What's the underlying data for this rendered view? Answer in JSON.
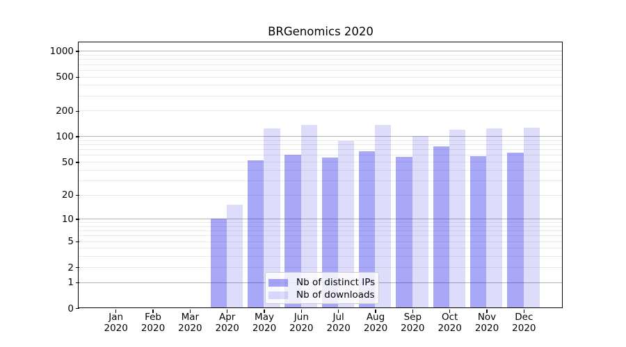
{
  "chart_data": {
    "type": "bar",
    "title": "BRGenomics 2020",
    "year": "2020",
    "categories": [
      "Jan",
      "Feb",
      "Mar",
      "Apr",
      "May",
      "Jun",
      "Jul",
      "Aug",
      "Sep",
      "Oct",
      "Nov",
      "Dec"
    ],
    "series": [
      {
        "name": "Nb of distinct IPs",
        "color": "rgba(13,13,230,0.36)",
        "values": [
          0,
          0,
          0,
          10,
          52,
          61,
          56,
          67,
          57,
          76,
          58,
          64
        ]
      },
      {
        "name": "Nb of downloads",
        "color": "rgba(13,13,230,0.14)",
        "values": [
          0,
          0,
          0,
          15,
          125,
          137,
          88,
          136,
          100,
          119,
          124,
          127
        ]
      }
    ],
    "yscale": "log10(1+x)",
    "ylim": [
      0,
      1280
    ],
    "yticks": [
      0,
      1,
      2,
      5,
      10,
      20,
      50,
      100,
      200,
      500,
      1000
    ],
    "major_gridlines": [
      1,
      10,
      100,
      1000
    ],
    "minor_gridlines": [
      2,
      3,
      4,
      5,
      6,
      7,
      8,
      9,
      20,
      30,
      40,
      50,
      60,
      70,
      80,
      90,
      200,
      300,
      400,
      500,
      600,
      700,
      800,
      900
    ],
    "legend": {
      "location": "lower center"
    },
    "grid": true
  },
  "colors": {
    "bar_distinct_ips": "rgba(13,13,230,0.36)",
    "bar_downloads": "rgba(13,13,230,0.14)",
    "grid_major": "#b3b3b3",
    "grid_minor": "#e9e9e9",
    "axis": "#000000",
    "text": "#000000",
    "legend_border": "#cccccc",
    "legend_background": "rgba(255,255,255,0.8)"
  }
}
